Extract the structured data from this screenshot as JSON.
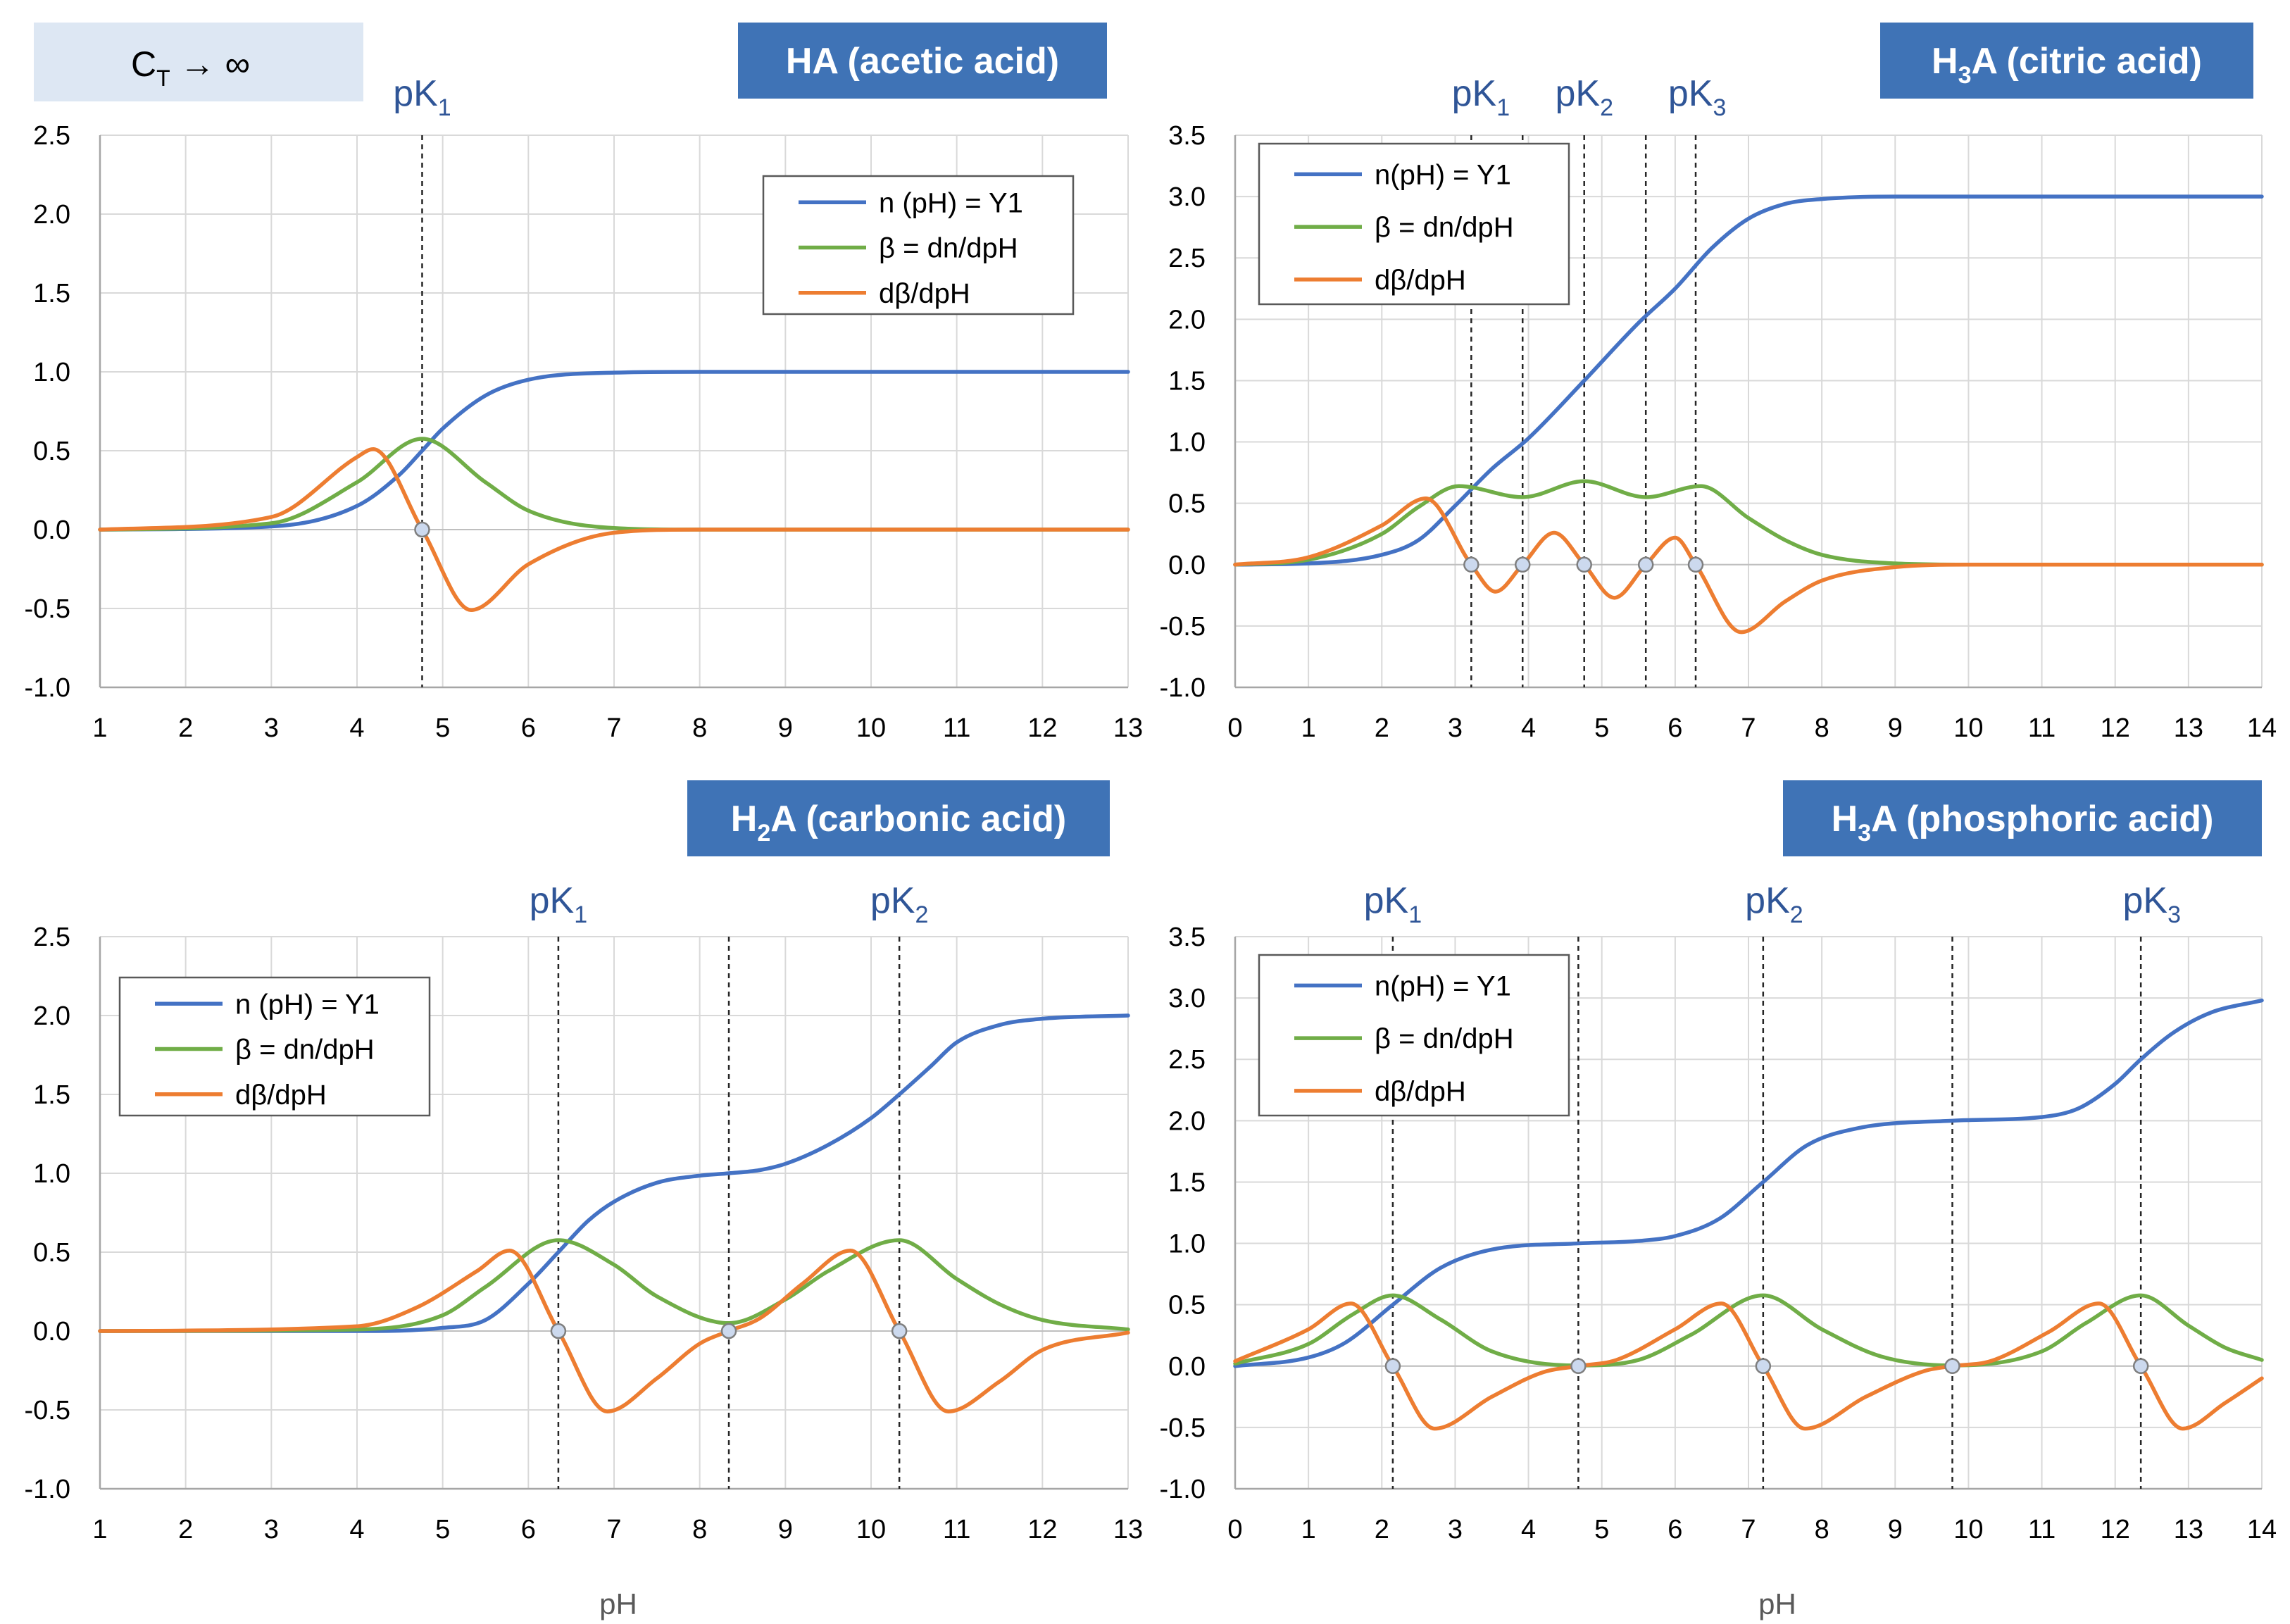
{
  "header_box": {
    "text": "C",
    "sub": "T",
    "tail": " → ∞",
    "bg": "#dde7f3"
  },
  "colors": {
    "n": "#4472c4",
    "beta": "#70ad47",
    "dbeta": "#ed7d31",
    "title_bg": "#3f73b6",
    "pk_label": "#2f5597",
    "grid": "#d9d9d9",
    "marker_fill": "#ccd9ee",
    "marker_stroke": "#7f7f7f"
  },
  "chart_data": [
    {
      "id": "acetic",
      "type": "line",
      "title": "HA (acetic acid)",
      "title_parts": [
        {
          "t": "HA (acetic acid)",
          "sub": false
        }
      ],
      "xlabel": "",
      "xlim": [
        1,
        13
      ],
      "ylim": [
        -1.0,
        2.5
      ],
      "xticks": [
        1,
        2,
        3,
        4,
        5,
        6,
        7,
        8,
        9,
        10,
        11,
        12,
        13
      ],
      "yticks": [
        -1.0,
        -0.5,
        0.0,
        0.5,
        1.0,
        1.5,
        2.0,
        2.5
      ],
      "ytick_labels": [
        "-1.0",
        "-0.5",
        "0.0",
        "0.5",
        "1.0",
        "1.5",
        "2.0",
        "2.5"
      ],
      "grid": true,
      "legend_position": "top-right",
      "legend": [
        "n (pH) = Y1",
        "β = dn/dpH",
        "dβ/dpH"
      ],
      "pK": [
        4.76
      ],
      "pk_labels": [
        {
          "base": "pK",
          "sub": "1",
          "x": 4.76
        }
      ],
      "vlines": [
        4.76
      ],
      "zero_markers": [
        4.76
      ],
      "series": [
        {
          "name": "n (pH) = Y1",
          "x": [
            1,
            3,
            4,
            4.5,
            4.76,
            5,
            5.5,
            6,
            7,
            8,
            13
          ],
          "y": [
            0.0,
            0.02,
            0.15,
            0.35,
            0.5,
            0.64,
            0.85,
            0.95,
            0.995,
            1.0,
            1.0
          ]
        },
        {
          "name": "β = dn/dpH",
          "x": [
            1,
            3,
            4,
            4.76,
            5.5,
            6,
            7,
            8,
            13
          ],
          "y": [
            0.0,
            0.04,
            0.3,
            0.576,
            0.3,
            0.12,
            0.01,
            0.0,
            0.0
          ]
        },
        {
          "name": "dβ/dpH",
          "x": [
            1,
            3,
            4,
            4.19,
            4.76,
            5.33,
            6,
            7,
            8,
            13
          ],
          "y": [
            0.0,
            0.08,
            0.46,
            0.51,
            0.0,
            -0.51,
            -0.22,
            -0.02,
            0.0,
            0.0
          ]
        }
      ]
    },
    {
      "id": "citric",
      "type": "line",
      "title": "H3A (citric acid)",
      "title_parts": [
        {
          "t": "H",
          "sub": false
        },
        {
          "t": "3",
          "sub": true
        },
        {
          "t": "A (citric acid)",
          "sub": false
        }
      ],
      "xlabel": "",
      "xlim": [
        0,
        14
      ],
      "ylim": [
        -1.0,
        3.5
      ],
      "xticks": [
        0,
        1,
        2,
        3,
        4,
        5,
        6,
        7,
        8,
        9,
        10,
        11,
        12,
        13,
        14
      ],
      "yticks": [
        -1.0,
        -0.5,
        0.0,
        0.5,
        1.0,
        1.5,
        2.0,
        2.5,
        3.0,
        3.5
      ],
      "ytick_labels": [
        "-1.0",
        "-0.5",
        "0.0",
        "0.5",
        "1.0",
        "1.5",
        "2.0",
        "2.5",
        "3.0",
        "3.5"
      ],
      "grid": true,
      "legend_position": "top-left",
      "legend": [
        "n(pH) = Y1",
        "β = dn/dpH",
        "dβ/dpH"
      ],
      "pK": [
        3.13,
        4.76,
        6.4
      ],
      "pk_labels": [
        {
          "base": "pK",
          "sub": "1",
          "x": 3.35
        },
        {
          "base": "pK",
          "sub": "2",
          "x": 4.76
        },
        {
          "base": "pK",
          "sub": "3",
          "x": 6.3
        }
      ],
      "vlines": [
        3.22,
        3.92,
        4.76,
        5.6,
        6.28
      ],
      "zero_markers": [
        3.22,
        3.92,
        4.76,
        5.6,
        6.28
      ],
      "series": [
        {
          "name": "n(pH) = Y1",
          "x": [
            0,
            1,
            2,
            2.5,
            3,
            3.5,
            4,
            4.76,
            5.5,
            6,
            6.5,
            7,
            7.5,
            8,
            9,
            10,
            14
          ],
          "y": [
            0.0,
            0.01,
            0.08,
            0.2,
            0.48,
            0.78,
            1.03,
            1.5,
            1.97,
            2.25,
            2.58,
            2.82,
            2.94,
            2.98,
            3.0,
            3.0,
            3.0
          ]
        },
        {
          "name": "β = dn/dpH",
          "x": [
            0,
            1,
            2,
            2.5,
            3.05,
            3.92,
            4.76,
            5.6,
            6.35,
            7,
            7.5,
            8,
            9,
            10,
            14
          ],
          "y": [
            0.0,
            0.04,
            0.25,
            0.47,
            0.64,
            0.55,
            0.68,
            0.55,
            0.64,
            0.38,
            0.2,
            0.08,
            0.01,
            0.0,
            0.0
          ]
        },
        {
          "name": "dβ/dpH",
          "x": [
            0,
            1,
            2,
            2.6,
            3.22,
            3.55,
            3.92,
            4.35,
            4.76,
            5.17,
            5.6,
            6.0,
            6.28,
            6.9,
            7.5,
            8,
            9,
            10,
            14
          ],
          "y": [
            0.0,
            0.06,
            0.32,
            0.54,
            0.0,
            -0.22,
            0.0,
            0.26,
            0.0,
            -0.27,
            0.0,
            0.22,
            0.0,
            -0.55,
            -0.3,
            -0.13,
            -0.02,
            0.0,
            0.0
          ]
        }
      ]
    },
    {
      "id": "carbonic",
      "type": "line",
      "title": "H2A (carbonic acid)",
      "title_parts": [
        {
          "t": "H",
          "sub": false
        },
        {
          "t": "2",
          "sub": true
        },
        {
          "t": "A (carbonic acid)",
          "sub": false
        }
      ],
      "xlabel": "pH",
      "xlim": [
        1,
        13
      ],
      "ylim": [
        -1.0,
        2.5
      ],
      "xticks": [
        1,
        2,
        3,
        4,
        5,
        6,
        7,
        8,
        9,
        10,
        11,
        12,
        13
      ],
      "yticks": [
        -1.0,
        -0.5,
        0.0,
        0.5,
        1.0,
        1.5,
        2.0,
        2.5
      ],
      "ytick_labels": [
        "-1.0",
        "-0.5",
        "0.0",
        "0.5",
        "1.0",
        "1.5",
        "2.0",
        "2.5"
      ],
      "grid": true,
      "legend_position": "top-left",
      "legend": [
        "n (pH) = Y1",
        "β = dn/dpH",
        "dβ/dpH"
      ],
      "pK": [
        6.35,
        10.33
      ],
      "pk_labels": [
        {
          "base": "pK",
          "sub": "1",
          "x": 6.35
        },
        {
          "base": "pK",
          "sub": "2",
          "x": 10.33
        }
      ],
      "vlines": [
        6.35,
        8.34,
        10.33
      ],
      "zero_markers": [
        6.35,
        8.34,
        10.33
      ],
      "series": [
        {
          "name": "n (pH) = Y1",
          "x": [
            1,
            4,
            5,
            5.5,
            6,
            6.35,
            6.7,
            7,
            7.5,
            8,
            8.34,
            8.7,
            9,
            9.5,
            10,
            10.33,
            10.7,
            11,
            11.5,
            12,
            13
          ],
          "y": [
            0.0,
            0.0,
            0.02,
            0.07,
            0.3,
            0.5,
            0.7,
            0.82,
            0.94,
            0.985,
            1.0,
            1.02,
            1.06,
            1.18,
            1.35,
            1.5,
            1.68,
            1.83,
            1.94,
            1.98,
            2.0
          ]
        },
        {
          "name": "β = dn/dpH",
          "x": [
            1,
            4,
            5,
            5.5,
            6.35,
            7,
            7.5,
            8.34,
            9,
            9.5,
            10.33,
            11,
            11.5,
            12,
            13
          ],
          "y": [
            0.0,
            0.01,
            0.1,
            0.28,
            0.576,
            0.42,
            0.22,
            0.05,
            0.2,
            0.38,
            0.576,
            0.33,
            0.17,
            0.07,
            0.01
          ]
        },
        {
          "name": "dβ/dpH",
          "x": [
            1,
            4,
            4.7,
            5.4,
            5.78,
            6.35,
            6.92,
            7.5,
            8,
            8.34,
            8.7,
            9.2,
            9.76,
            10.33,
            10.9,
            11.5,
            12,
            13
          ],
          "y": [
            0.0,
            0.03,
            0.15,
            0.38,
            0.51,
            0.0,
            -0.51,
            -0.3,
            -0.08,
            0.0,
            0.08,
            0.3,
            0.51,
            0.0,
            -0.51,
            -0.32,
            -0.12,
            -0.01
          ]
        }
      ]
    },
    {
      "id": "phosphoric",
      "type": "line",
      "title": "H3A (phosphoric acid)",
      "title_parts": [
        {
          "t": "H",
          "sub": false
        },
        {
          "t": "3",
          "sub": true
        },
        {
          "t": "A (phosphoric acid)",
          "sub": false
        }
      ],
      "xlabel": "pH",
      "xlim": [
        0,
        14
      ],
      "ylim": [
        -1.0,
        3.5
      ],
      "xticks": [
        0,
        1,
        2,
        3,
        4,
        5,
        6,
        7,
        8,
        9,
        10,
        11,
        12,
        13,
        14
      ],
      "yticks": [
        -1.0,
        -0.5,
        0.0,
        0.5,
        1.0,
        1.5,
        2.0,
        2.5,
        3.0,
        3.5
      ],
      "ytick_labels": [
        "-1.0",
        "-0.5",
        "0.0",
        "0.5",
        "1.0",
        "1.5",
        "2.0",
        "2.5",
        "3.0",
        "3.5"
      ],
      "grid": true,
      "legend_position": "top-left",
      "legend": [
        "n(pH) = Y1",
        "β = dn/dpH",
        "dβ/dpH"
      ],
      "pK": [
        2.15,
        7.2,
        12.35
      ],
      "pk_labels": [
        {
          "base": "pK",
          "sub": "1",
          "x": 2.15
        },
        {
          "base": "pK",
          "sub": "2",
          "x": 7.35
        },
        {
          "base": "pK",
          "sub": "3",
          "x": 12.5
        }
      ],
      "vlines": [
        2.15,
        4.68,
        7.2,
        9.78,
        12.35
      ],
      "zero_markers": [
        2.15,
        4.68,
        7.2,
        9.78,
        12.35
      ],
      "series": [
        {
          "name": "n(pH) = Y1",
          "x": [
            0,
            1,
            1.5,
            2.15,
            2.8,
            3.5,
            4.68,
            5.5,
            6,
            6.6,
            7.2,
            7.8,
            8.5,
            9.78,
            11,
            11.5,
            12,
            12.35,
            12.8,
            13.3,
            14
          ],
          "y": [
            0.0,
            0.07,
            0.19,
            0.5,
            0.8,
            0.95,
            1.0,
            1.02,
            1.06,
            1.2,
            1.5,
            1.8,
            1.94,
            2.0,
            2.03,
            2.1,
            2.3,
            2.5,
            2.72,
            2.88,
            2.98
          ]
        },
        {
          "name": "β = dn/dpH",
          "x": [
            0,
            1,
            1.6,
            2.15,
            2.8,
            3.5,
            4.68,
            5.5,
            6.2,
            7.2,
            8,
            8.8,
            9.78,
            11,
            11.6,
            12.35,
            13,
            13.5,
            14
          ],
          "y": [
            0.02,
            0.18,
            0.42,
            0.576,
            0.38,
            0.12,
            0.005,
            0.05,
            0.25,
            0.576,
            0.3,
            0.08,
            0.005,
            0.12,
            0.35,
            0.576,
            0.33,
            0.15,
            0.05
          ]
        },
        {
          "name": "dβ/dpH",
          "x": [
            0,
            1,
            1.58,
            2.15,
            2.72,
            3.5,
            4.2,
            4.68,
            5.2,
            6.0,
            6.63,
            7.2,
            7.77,
            8.6,
            9.4,
            9.78,
            10.3,
            11.1,
            11.78,
            12.35,
            12.92,
            13.5,
            14
          ],
          "y": [
            0.04,
            0.3,
            0.51,
            0.0,
            -0.51,
            -0.25,
            -0.05,
            0.0,
            0.05,
            0.3,
            0.51,
            0.0,
            -0.51,
            -0.25,
            -0.04,
            0.0,
            0.04,
            0.28,
            0.51,
            0.0,
            -0.51,
            -0.3,
            -0.1
          ]
        }
      ]
    }
  ]
}
